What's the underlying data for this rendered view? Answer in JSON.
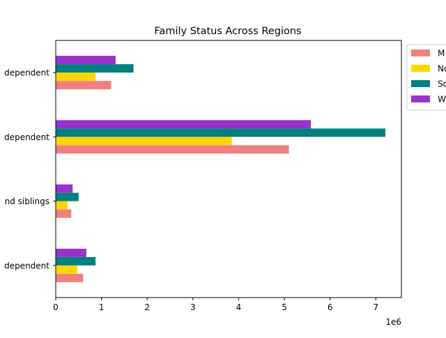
{
  "chart_data": {
    "type": "bar",
    "orientation": "horizontal",
    "title": "Family Status Across Regions",
    "xlabel": "",
    "ylabel": "",
    "x_offset_label": "1e6",
    "xlim": [
      0,
      7560000
    ],
    "x_ticks": [
      0,
      1,
      2,
      3,
      4,
      5,
      6,
      7
    ],
    "x_tick_labels": [
      "0",
      "1",
      "2",
      "3",
      "4",
      "5",
      "6",
      "7"
    ],
    "grid": false,
    "legend_position": "upper-right-outside",
    "categories": [
      "dependent",
      "dependent",
      "nd siblings",
      "dependent"
    ],
    "series": [
      {
        "name": "M",
        "color": "#f08080",
        "values": [
          1210000,
          5100000,
          340000,
          600000
        ]
      },
      {
        "name": "No",
        "color": "#ffd700",
        "values": [
          870000,
          3850000,
          260000,
          470000
        ]
      },
      {
        "name": "So",
        "color": "#008080",
        "values": [
          1700000,
          7210000,
          500000,
          870000
        ]
      },
      {
        "name": "W",
        "color": "#9932cc",
        "values": [
          1310000,
          5580000,
          370000,
          670000
        ]
      }
    ]
  }
}
